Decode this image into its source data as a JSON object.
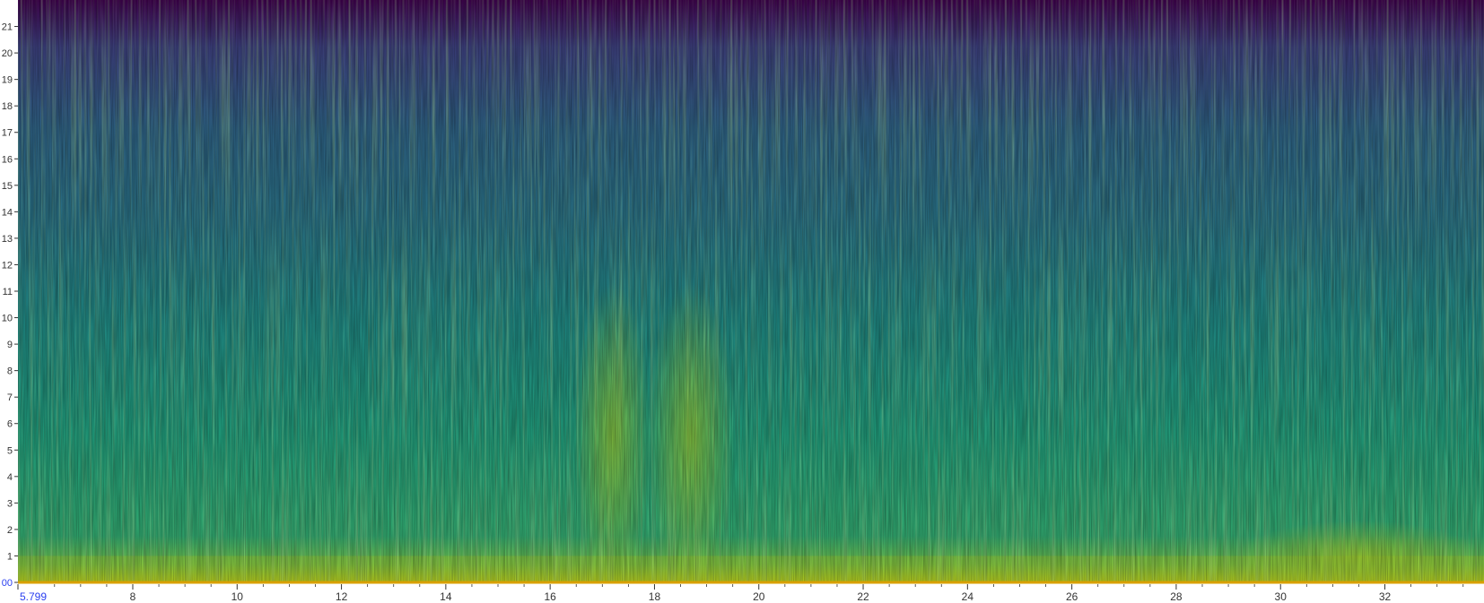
{
  "view": {
    "time_start_label": "5.799",
    "freq_zero_label": "00"
  },
  "colors": {
    "low": "#440154",
    "mid_low": "#3b528b",
    "mid": "#21908c",
    "mid_high": "#5dc863",
    "high": "#fde725",
    "baseline": "#d9a000",
    "selection_marker": "#2a3ff0",
    "axis_text": "#333333"
  },
  "chart_data": {
    "type": "heatmap",
    "colormap": "viridis",
    "title": "",
    "xlabel": "",
    "ylabel": "",
    "xlim": [
      5.799,
      33.9
    ],
    "ylim": [
      0,
      22
    ],
    "x_ticks": [
      "5.799",
      "8",
      "10",
      "12",
      "14",
      "16",
      "18",
      "20",
      "22",
      "24",
      "26",
      "28",
      "30",
      "32"
    ],
    "y_ticks": [
      "00",
      "1",
      "2",
      "3",
      "4",
      "5",
      "6",
      "7",
      "8",
      "9",
      "10",
      "11",
      "12",
      "13",
      "14",
      "15",
      "16",
      "17",
      "18",
      "19",
      "20",
      "21"
    ],
    "bright_bands": [
      {
        "x_start": 16.8,
        "x_end": 17.6,
        "y_max": 11
      },
      {
        "x_start": 18.2,
        "x_end": 19.2,
        "y_max": 11
      },
      {
        "x_start": 29.5,
        "x_end": 33.5,
        "y_max": 2
      }
    ]
  }
}
